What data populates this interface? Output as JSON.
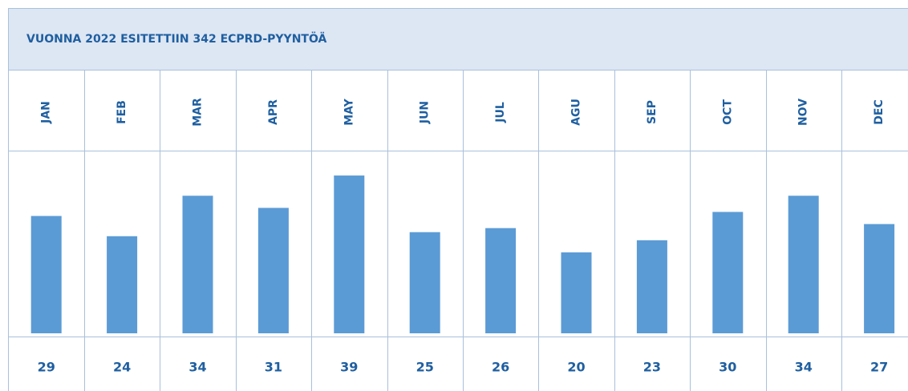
{
  "chart_data": {
    "type": "bar",
    "title": "VUONNA 2022 ESITETTIIN 342 ECPRD-PYYNTÖÄ",
    "categories": [
      "JAN",
      "FEB",
      "MAR",
      "APR",
      "MAY",
      "JUN",
      "JUL",
      "AGU",
      "SEP",
      "OCT",
      "NOV",
      "DEC"
    ],
    "values": [
      29,
      24,
      34,
      31,
      39,
      25,
      26,
      20,
      23,
      30,
      34,
      27
    ],
    "color": "#5b9bd5"
  }
}
